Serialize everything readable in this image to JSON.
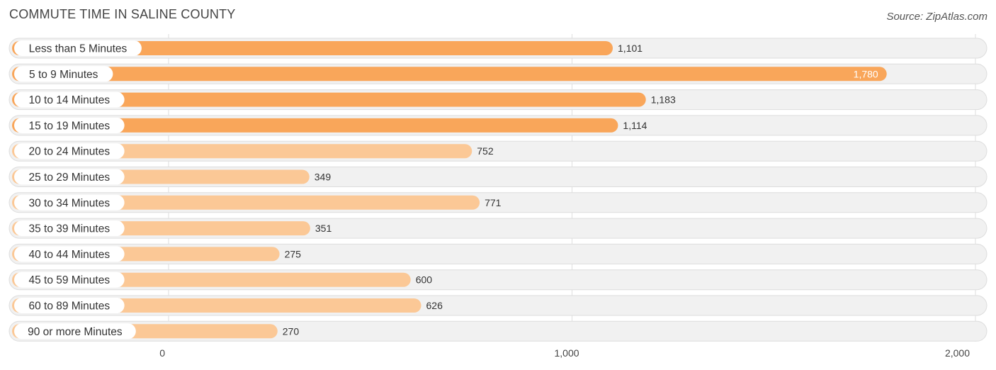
{
  "header": {
    "title": "COMMUTE TIME IN SALINE COUNTY",
    "source": "Source: ZipAtlas.com"
  },
  "colors": {
    "bar_strong": "#f9a65a",
    "bar_light": "#fbc896",
    "track": "#f1f1f1",
    "track_border": "#dddddd",
    "grid": "#dddddd"
  },
  "chart_data": {
    "type": "bar",
    "orientation": "horizontal",
    "title": "COMMUTE TIME IN SALINE COUNTY",
    "xlabel": "",
    "ylabel": "",
    "xlim": [
      0,
      2000
    ],
    "ticks": [
      {
        "value": 0,
        "label": "0"
      },
      {
        "value": 1000,
        "label": "1,000"
      },
      {
        "value": 2000,
        "label": "2,000"
      }
    ],
    "grid": true,
    "categories": [
      "Less than 5 Minutes",
      "5 to 9 Minutes",
      "10 to 14 Minutes",
      "15 to 19 Minutes",
      "20 to 24 Minutes",
      "25 to 29 Minutes",
      "30 to 34 Minutes",
      "35 to 39 Minutes",
      "40 to 44 Minutes",
      "45 to 59 Minutes",
      "60 to 89 Minutes",
      "90 or more Minutes"
    ],
    "values": [
      1101,
      1780,
      1183,
      1114,
      752,
      349,
      771,
      351,
      275,
      600,
      626,
      270
    ],
    "value_labels": [
      "1,101",
      "1,780",
      "1,183",
      "1,114",
      "752",
      "349",
      "771",
      "351",
      "275",
      "600",
      "626",
      "270"
    ]
  }
}
